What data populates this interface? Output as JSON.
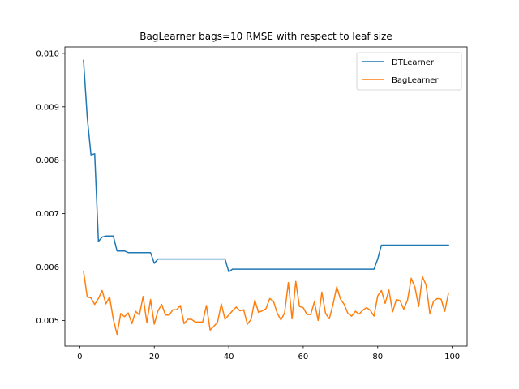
{
  "chart_data": {
    "type": "line",
    "title": "BagLearner bags=10 RMSE with respect to leaf size",
    "xlabel": "",
    "ylabel": "",
    "xlim": [
      -4,
      104
    ],
    "ylim": [
      0.00452,
      0.01012
    ],
    "xticks": [
      0,
      20,
      40,
      60,
      80,
      100
    ],
    "xtick_labels": [
      "0",
      "20",
      "40",
      "60",
      "80",
      "100"
    ],
    "yticks": [
      0.005,
      0.006,
      0.007,
      0.008,
      0.009,
      0.01
    ],
    "ytick_labels": [
      "0.005",
      "0.006",
      "0.007",
      "0.008",
      "0.009",
      "0.010"
    ],
    "grid": false,
    "legend_position": "top-right",
    "x": [
      1,
      2,
      3,
      4,
      5,
      6,
      7,
      8,
      9,
      10,
      11,
      12,
      13,
      14,
      15,
      16,
      17,
      18,
      19,
      20,
      21,
      22,
      23,
      24,
      25,
      26,
      27,
      28,
      29,
      30,
      31,
      32,
      33,
      34,
      35,
      36,
      37,
      38,
      39,
      40,
      41,
      42,
      43,
      44,
      45,
      46,
      47,
      48,
      49,
      50,
      51,
      52,
      53,
      54,
      55,
      56,
      57,
      58,
      59,
      60,
      61,
      62,
      63,
      64,
      65,
      66,
      67,
      68,
      69,
      70,
      71,
      72,
      73,
      74,
      75,
      76,
      77,
      78,
      79,
      80,
      81,
      82,
      83,
      84,
      85,
      86,
      87,
      88,
      89,
      90,
      91,
      92,
      93,
      94,
      95,
      96,
      97,
      98,
      99
    ],
    "series": [
      {
        "name": "DTLearner",
        "color": "#1f77b4",
        "values": [
          0.00987,
          0.0088,
          0.0081,
          0.00812,
          0.00648,
          0.00656,
          0.00658,
          0.00658,
          0.00658,
          0.0063,
          0.0063,
          0.0063,
          0.00627,
          0.00627,
          0.00627,
          0.00627,
          0.00627,
          0.00627,
          0.00627,
          0.00607,
          0.00615,
          0.00615,
          0.00615,
          0.00615,
          0.00615,
          0.00615,
          0.00615,
          0.00615,
          0.00615,
          0.00615,
          0.00615,
          0.00615,
          0.00615,
          0.00615,
          0.00615,
          0.00615,
          0.00615,
          0.00615,
          0.00615,
          0.00591,
          0.00596,
          0.00596,
          0.00596,
          0.00596,
          0.00596,
          0.00596,
          0.00596,
          0.00596,
          0.00596,
          0.00596,
          0.00596,
          0.00596,
          0.00596,
          0.00596,
          0.00596,
          0.00596,
          0.00596,
          0.00596,
          0.00596,
          0.00596,
          0.00596,
          0.00596,
          0.00596,
          0.00596,
          0.00596,
          0.00596,
          0.00596,
          0.00596,
          0.00596,
          0.00596,
          0.00596,
          0.00596,
          0.00596,
          0.00596,
          0.00596,
          0.00596,
          0.00596,
          0.00596,
          0.00596,
          0.00615,
          0.00641,
          0.00641,
          0.00641,
          0.00641,
          0.00641,
          0.00641,
          0.00641,
          0.00641,
          0.00641,
          0.00641,
          0.00641,
          0.00641,
          0.00641,
          0.00641,
          0.00641,
          0.00641,
          0.00641,
          0.00641,
          0.00641
        ]
      },
      {
        "name": "BagLearner",
        "color": "#ff7f0e",
        "values": [
          0.00592,
          0.00544,
          0.00542,
          0.0053,
          0.00541,
          0.00556,
          0.00531,
          0.00544,
          0.00502,
          0.00474,
          0.00513,
          0.00507,
          0.00514,
          0.00494,
          0.00517,
          0.0051,
          0.00545,
          0.00496,
          0.00539,
          0.00493,
          0.00518,
          0.0053,
          0.0051,
          0.0051,
          0.0052,
          0.0052,
          0.00528,
          0.00494,
          0.00502,
          0.00502,
          0.00497,
          0.00497,
          0.00497,
          0.00528,
          0.00482,
          0.00489,
          0.00497,
          0.00531,
          0.00502,
          0.0051,
          0.00518,
          0.00525,
          0.00518,
          0.0052,
          0.00493,
          0.00502,
          0.00538,
          0.00515,
          0.00518,
          0.00522,
          0.00541,
          0.00536,
          0.00514,
          0.00501,
          0.00514,
          0.00571,
          0.00503,
          0.00573,
          0.00526,
          0.00524,
          0.00511,
          0.00511,
          0.00535,
          0.005,
          0.00553,
          0.00513,
          0.00503,
          0.0053,
          0.00563,
          0.0054,
          0.0053,
          0.00513,
          0.00508,
          0.00517,
          0.00512,
          0.00519,
          0.00524,
          0.00519,
          0.00508,
          0.00546,
          0.00556,
          0.00532,
          0.00557,
          0.00516,
          0.00539,
          0.00537,
          0.00521,
          0.00538,
          0.00579,
          0.00562,
          0.00526,
          0.00582,
          0.00566,
          0.00513,
          0.00536,
          0.00541,
          0.0054,
          0.00517,
          0.00551
        ]
      }
    ]
  }
}
